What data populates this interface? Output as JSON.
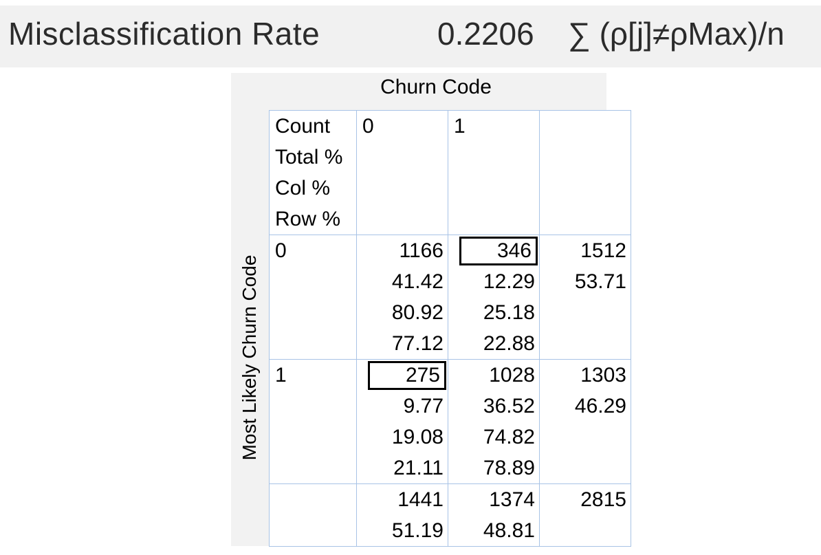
{
  "summary": {
    "label": "Misclassification Rate",
    "value": "0.2206",
    "formula": "∑ (ρ[j]≠ρMax)/n"
  },
  "table": {
    "column_title": "Churn Code",
    "row_title": "Most Likely Churn Code",
    "stat_labels": [
      "Count",
      "Total %",
      "Col %",
      "Row %"
    ],
    "col_headers": [
      "0",
      "1",
      ""
    ],
    "rows": [
      {
        "label": "0",
        "cells": [
          [
            "1166",
            "41.42",
            "80.92",
            "77.12"
          ],
          [
            "346",
            "12.29",
            "25.18",
            "22.88"
          ],
          [
            "1512",
            "53.71",
            "",
            ""
          ]
        ]
      },
      {
        "label": "1",
        "cells": [
          [
            "275",
            "9.77",
            "19.08",
            "21.11"
          ],
          [
            "1028",
            "36.52",
            "74.82",
            "78.89"
          ],
          [
            "1303",
            "46.29",
            "",
            ""
          ]
        ]
      }
    ],
    "totals": [
      [
        "1441",
        "51.19"
      ],
      [
        "1374",
        "48.81"
      ],
      [
        "2815",
        ""
      ]
    ]
  }
}
